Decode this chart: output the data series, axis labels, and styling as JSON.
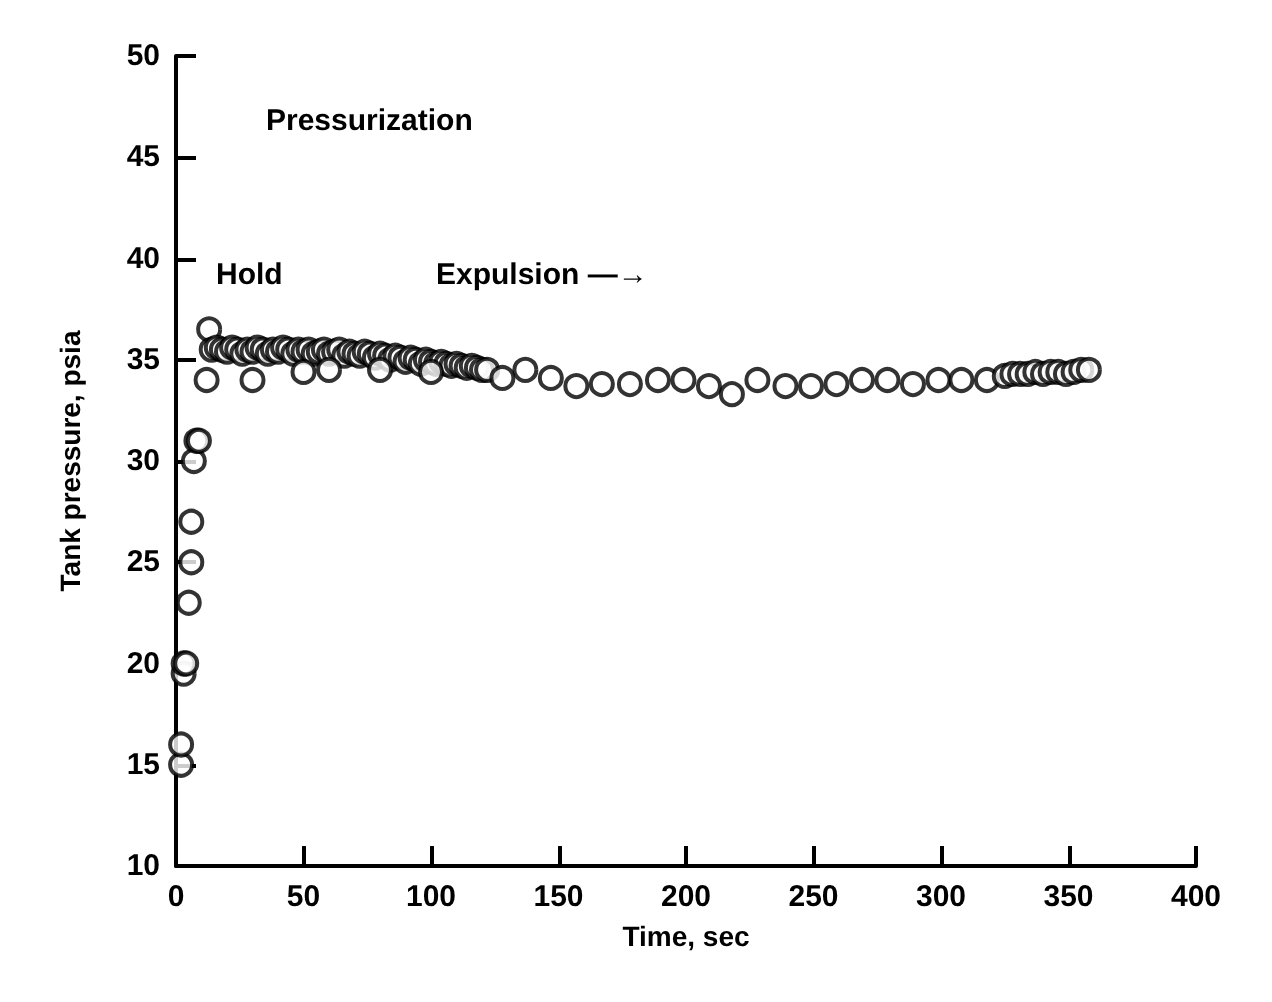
{
  "chart_data": {
    "type": "scatter",
    "xlabel": "Time, sec",
    "ylabel": "Tank pressure, psia",
    "xlim": [
      0,
      400
    ],
    "xticks": [
      0,
      50,
      100,
      150,
      200,
      250,
      300,
      350,
      400
    ],
    "ylim": [
      10,
      50
    ],
    "yticks": [
      10,
      15,
      20,
      25,
      30,
      35,
      40,
      45,
      50
    ],
    "grid": false,
    "marker": "circle",
    "annotations": [
      "Pressurization",
      "Hold",
      "Expulsion —→"
    ],
    "series": [
      {
        "color": "#000000",
        "x": [
          2,
          2,
          3,
          3,
          4,
          5,
          6,
          6,
          7,
          8,
          9,
          12,
          13,
          14,
          16,
          18,
          20,
          22,
          24,
          26,
          28,
          30,
          32,
          34,
          36,
          38,
          40,
          42,
          44,
          46,
          48,
          50,
          52,
          54,
          56,
          58,
          60,
          62,
          64,
          66,
          68,
          70,
          72,
          74,
          76,
          78,
          80,
          82,
          84,
          86,
          88,
          90,
          92,
          94,
          96,
          98,
          100,
          102,
          104,
          106,
          108,
          110,
          112,
          114,
          116,
          118,
          120,
          122,
          30,
          50,
          60,
          80,
          100,
          128,
          137,
          147,
          157,
          167,
          178,
          189,
          199,
          209,
          218,
          228,
          239,
          249,
          259,
          269,
          279,
          289,
          299,
          308,
          318,
          325,
          328,
          331,
          334,
          337,
          340,
          343,
          346,
          349,
          352,
          355,
          358
        ],
        "values": [
          15,
          16,
          19.5,
          20,
          20,
          23,
          25,
          27,
          30,
          31,
          31,
          34,
          36.5,
          35.5,
          35.6,
          35.5,
          35.4,
          35.6,
          35.5,
          35.3,
          35.5,
          35.4,
          35.6,
          35.5,
          35.3,
          35.5,
          35.4,
          35.6,
          35.5,
          35.3,
          35.5,
          35.4,
          35.5,
          35.3,
          35.4,
          35.5,
          35.3,
          35.4,
          35.5,
          35.2,
          35.4,
          35.3,
          35.2,
          35.4,
          35.3,
          35.1,
          35.3,
          35.2,
          35,
          35.2,
          35.1,
          34.9,
          35.1,
          35,
          34.8,
          35,
          34.9,
          34.8,
          34.9,
          34.8,
          34.7,
          34.8,
          34.7,
          34.6,
          34.7,
          34.6,
          34.5,
          34.5,
          34,
          34.4,
          34.5,
          34.5,
          34.4,
          34.1,
          34.5,
          34.1,
          33.7,
          33.8,
          33.8,
          34,
          34,
          33.7,
          33.3,
          34,
          33.7,
          33.7,
          33.8,
          34,
          34,
          33.8,
          34,
          34,
          34,
          34.2,
          34.3,
          34.3,
          34.3,
          34.4,
          34.3,
          34.4,
          34.4,
          34.3,
          34.4,
          34.5,
          34.5
        ]
      }
    ]
  }
}
